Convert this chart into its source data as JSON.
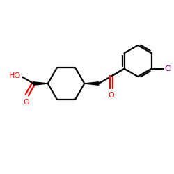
{
  "background_color": "#ffffff",
  "bond_color": "#000000",
  "oxygen_color": "#ff0000",
  "chlorine_color": "#800080",
  "figsize": [
    2.5,
    2.5
  ],
  "dpi": 100,
  "ho_label": "HO",
  "o_label1": "O",
  "o_label2": "O",
  "cl_label": "Cl"
}
